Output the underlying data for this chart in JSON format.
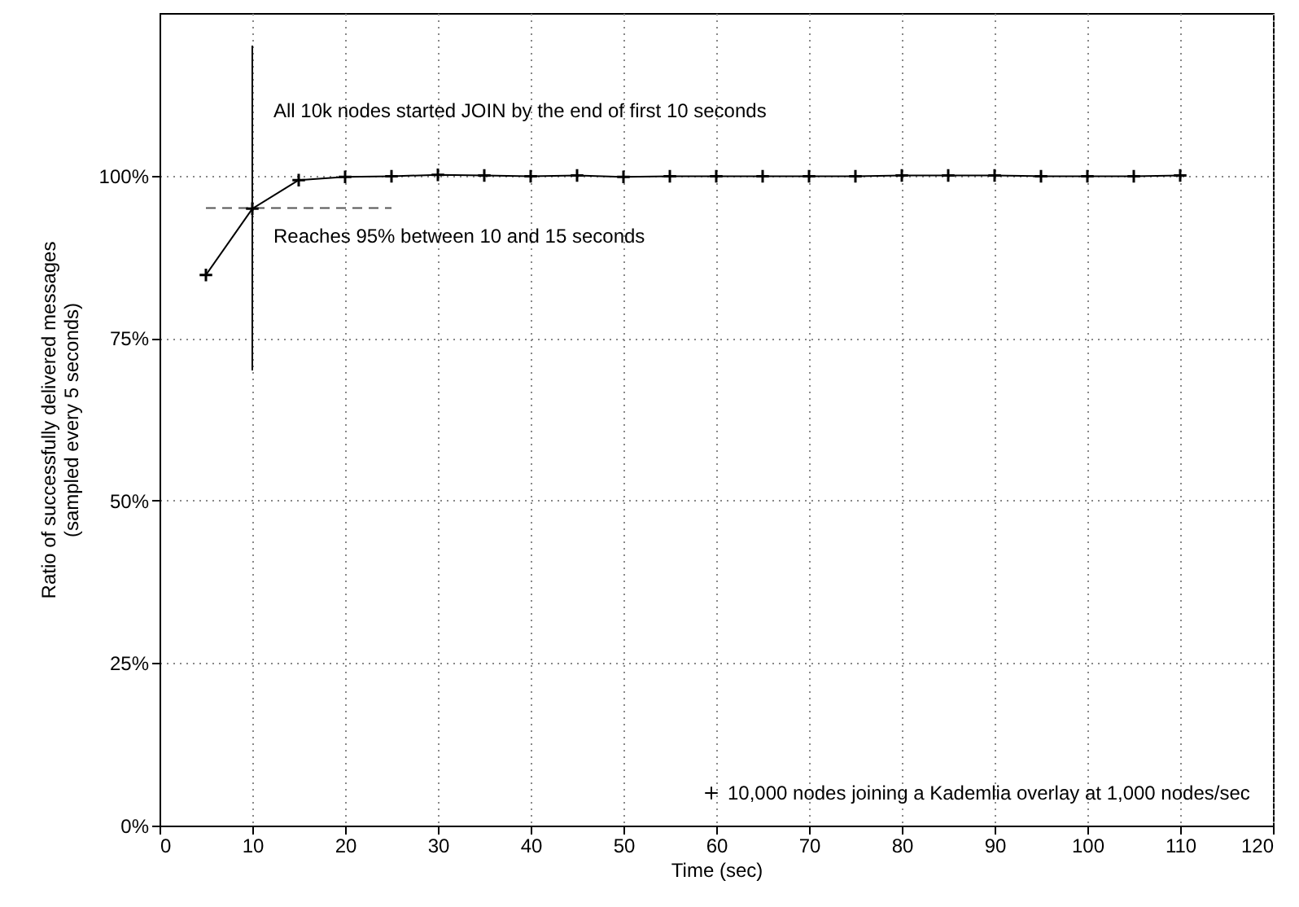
{
  "chart_data": {
    "type": "line",
    "xlabel": "Time (sec)",
    "ylabel": "Ratio of successfully delivered messages\n(sampled every 5 seconds)",
    "x": [
      5,
      10,
      15,
      20,
      25,
      30,
      35,
      40,
      45,
      50,
      55,
      60,
      65,
      70,
      75,
      80,
      85,
      90,
      95,
      100,
      105,
      110
    ],
    "series": [
      {
        "name": "10,000 nodes joining a Kademlia overlay at 1,000 nodes/sec",
        "color": "#000000",
        "marker": "cross",
        "values": [
          84.7,
          94.9,
          99.3,
          99.8,
          99.9,
          100.1,
          100,
          99.9,
          100,
          99.8,
          99.9,
          99.9,
          99.9,
          99.9,
          99.9,
          100,
          100,
          100,
          99.9,
          99.9,
          99.9,
          100
        ]
      },
      {
        "type": "line",
        "color": "#000000",
        "marker": "none",
        "line_style": "solid",
        "x": [
          10,
          10
        ],
        "values": [
          70,
          120
        ]
      },
      {
        "type": "line",
        "color": "#555555",
        "marker": "none",
        "line_style": "dashed",
        "x": [
          5,
          25
        ],
        "values": [
          95,
          95
        ]
      }
    ],
    "xlim": [
      0,
      120
    ],
    "xticks": [
      0,
      10,
      20,
      30,
      40,
      50,
      60,
      70,
      80,
      90,
      100,
      110,
      120
    ],
    "ylim": [
      0,
      125
    ],
    "yticks": [
      {
        "value": 0,
        "label": "0%"
      },
      {
        "value": 25,
        "label": "25%"
      },
      {
        "value": 50,
        "label": "50%"
      },
      {
        "value": 75,
        "label": "75%"
      },
      {
        "value": 100,
        "label": "100%"
      }
    ],
    "annotations": [
      "All 10k nodes started JOIN by the end of first 10 seconds",
      "Reaches 95% between 10 and 15 seconds"
    ],
    "grid": true,
    "legend": "bottom right",
    "line_style": "solid"
  }
}
